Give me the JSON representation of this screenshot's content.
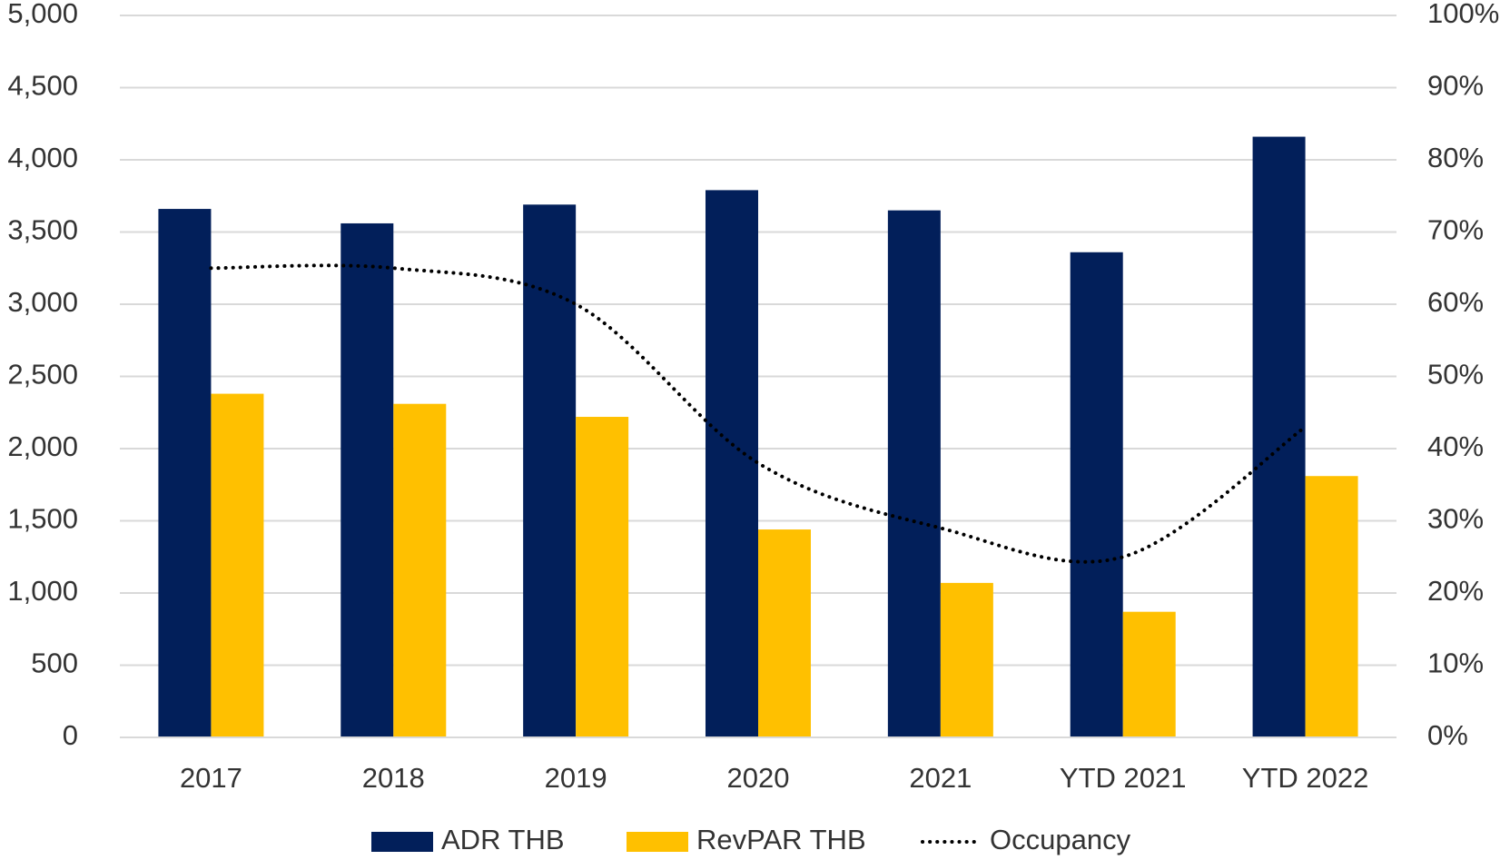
{
  "chart_data": {
    "type": "bar",
    "categories": [
      "2017",
      "2018",
      "2019",
      "2020",
      "2021",
      "YTD 2021",
      "YTD 2022"
    ],
    "series": [
      {
        "name": "ADR THB",
        "color": "#021f5a",
        "values": [
          3660,
          3560,
          3690,
          3790,
          3650,
          3360,
          4160
        ]
      },
      {
        "name": "RevPAR THB",
        "color": "#ffc000",
        "values": [
          2380,
          2310,
          2220,
          1440,
          1070,
          870,
          1810
        ]
      },
      {
        "name": "Occupancy",
        "color": "#000000",
        "type": "line",
        "axis": "y2",
        "values": [
          65,
          65,
          60,
          38,
          29,
          25,
          43
        ]
      }
    ],
    "ylim": [
      0,
      5000
    ],
    "yticks": [
      0,
      500,
      {
        "value": 1000,
        "label": "1,000"
      },
      {
        "value": 1500,
        "label": "1,500"
      },
      {
        "value": 2000,
        "label": "2,000"
      },
      {
        "value": 2500,
        "label": "2,500"
      },
      {
        "value": 3000,
        "label": "3,000"
      },
      {
        "value": 3500,
        "label": "3,500"
      },
      {
        "value": 4000,
        "label": "4,000"
      },
      {
        "value": 4500,
        "label": "4,500"
      },
      {
        "value": 5000,
        "label": "5,000"
      }
    ],
    "y2lim": [
      0,
      100
    ],
    "y2ticks": [
      {
        "value": 0,
        "label": "0%"
      },
      {
        "value": 10,
        "label": "10%"
      },
      {
        "value": 20,
        "label": "20%"
      },
      {
        "value": 30,
        "label": "30%"
      },
      {
        "value": 40,
        "label": "40%"
      },
      {
        "value": 50,
        "label": "50%"
      },
      {
        "value": 60,
        "label": "60%"
      },
      {
        "value": 70,
        "label": "70%"
      },
      {
        "value": 80,
        "label": "80%"
      },
      {
        "value": 90,
        "label": "90%"
      },
      {
        "value": 100,
        "label": "100%"
      }
    ],
    "grid": true,
    "legend": "bottom"
  }
}
